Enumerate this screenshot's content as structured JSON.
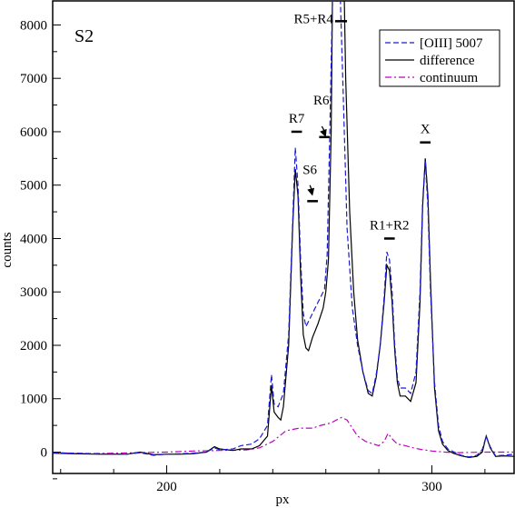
{
  "chart_data": {
    "type": "line",
    "title": "",
    "panel_label": "S2",
    "xlabel": "px",
    "ylabel": "counts",
    "xlim": [
      157,
      331
    ],
    "ylim": [
      -400,
      8450
    ],
    "x_ticks": [
      200,
      300
    ],
    "y_ticks": [
      0,
      1000,
      2000,
      3000,
      4000,
      5000,
      6000,
      7000,
      8000
    ],
    "legend_position": "top-right",
    "series": [
      {
        "name": "[OIII] 5007",
        "color": "#1a1ad6",
        "dash": "6,3",
        "points": [
          [
            157,
            -10
          ],
          [
            165,
            -20
          ],
          [
            175,
            -30
          ],
          [
            185,
            -40
          ],
          [
            190,
            -10
          ],
          [
            195,
            -60
          ],
          [
            200,
            -40
          ],
          [
            205,
            -30
          ],
          [
            210,
            -20
          ],
          [
            215,
            0
          ],
          [
            218,
            80
          ],
          [
            220,
            40
          ],
          [
            225,
            60
          ],
          [
            228,
            120
          ],
          [
            232,
            150
          ],
          [
            235,
            250
          ],
          [
            238,
            500
          ],
          [
            239.5,
            1450
          ],
          [
            240.5,
            900
          ],
          [
            242,
            850
          ],
          [
            244,
            1100
          ],
          [
            246,
            2200
          ],
          [
            247.5,
            4300
          ],
          [
            248.5,
            5700
          ],
          [
            249.5,
            5000
          ],
          [
            250.5,
            3600
          ],
          [
            251.5,
            2600
          ],
          [
            252.5,
            2350
          ],
          [
            254,
            2500
          ],
          [
            256,
            2700
          ],
          [
            258,
            2900
          ],
          [
            259.5,
            3050
          ],
          [
            260.5,
            3700
          ],
          [
            261.5,
            6000
          ],
          [
            262.5,
            8450
          ],
          [
            265.5,
            8450
          ],
          [
            266.5,
            6800
          ],
          [
            268,
            4200
          ],
          [
            270,
            2700
          ],
          [
            272,
            2000
          ],
          [
            274,
            1500
          ],
          [
            276,
            1150
          ],
          [
            277.5,
            1100
          ],
          [
            279,
            1450
          ],
          [
            280.5,
            2000
          ],
          [
            282,
            2900
          ],
          [
            283,
            3750
          ],
          [
            284,
            3600
          ],
          [
            285,
            3000
          ],
          [
            286,
            2000
          ],
          [
            287,
            1400
          ],
          [
            288,
            1200
          ],
          [
            290,
            1200
          ],
          [
            292,
            1100
          ],
          [
            294,
            1500
          ],
          [
            295.5,
            3000
          ],
          [
            296.5,
            4700
          ],
          [
            297.5,
            5450
          ],
          [
            298.5,
            4600
          ],
          [
            299.5,
            3000
          ],
          [
            301,
            1300
          ],
          [
            302.5,
            500
          ],
          [
            304,
            200
          ],
          [
            306,
            60
          ],
          [
            308,
            10
          ],
          [
            311,
            -60
          ],
          [
            314,
            -90
          ],
          [
            317,
            -60
          ],
          [
            319,
            50
          ],
          [
            320.5,
            300
          ],
          [
            322,
            100
          ],
          [
            324,
            -70
          ],
          [
            327,
            -60
          ],
          [
            331,
            -40
          ]
        ]
      },
      {
        "name": "difference",
        "color": "#000000",
        "dash": "",
        "points": [
          [
            157,
            -20
          ],
          [
            165,
            -30
          ],
          [
            175,
            -40
          ],
          [
            185,
            -40
          ],
          [
            190,
            0
          ],
          [
            195,
            -50
          ],
          [
            200,
            -40
          ],
          [
            205,
            -40
          ],
          [
            210,
            -30
          ],
          [
            215,
            0
          ],
          [
            218,
            100
          ],
          [
            220,
            60
          ],
          [
            225,
            30
          ],
          [
            228,
            60
          ],
          [
            232,
            60
          ],
          [
            235,
            120
          ],
          [
            238,
            300
          ],
          [
            239.5,
            1250
          ],
          [
            240.5,
            750
          ],
          [
            242,
            650
          ],
          [
            243,
            600
          ],
          [
            244,
            850
          ],
          [
            246,
            2000
          ],
          [
            247.5,
            4200
          ],
          [
            248.5,
            5300
          ],
          [
            249.5,
            4800
          ],
          [
            250.5,
            3300
          ],
          [
            251.5,
            2200
          ],
          [
            252.5,
            1950
          ],
          [
            253.5,
            1900
          ],
          [
            255,
            2150
          ],
          [
            257,
            2400
          ],
          [
            259,
            2700
          ],
          [
            260,
            3000
          ],
          [
            261,
            3600
          ],
          [
            262,
            6000
          ],
          [
            262.5,
            8450
          ],
          [
            267,
            8450
          ],
          [
            267.5,
            7000
          ],
          [
            269,
            4500
          ],
          [
            270.5,
            3000
          ],
          [
            272,
            2100
          ],
          [
            274,
            1500
          ],
          [
            276,
            1100
          ],
          [
            277.5,
            1050
          ],
          [
            279,
            1400
          ],
          [
            280.5,
            2000
          ],
          [
            282,
            2800
          ],
          [
            283,
            3500
          ],
          [
            284,
            3400
          ],
          [
            285,
            2800
          ],
          [
            286,
            1900
          ],
          [
            287,
            1300
          ],
          [
            288,
            1050
          ],
          [
            290,
            1050
          ],
          [
            292,
            950
          ],
          [
            294,
            1300
          ],
          [
            295.5,
            2800
          ],
          [
            296.5,
            4600
          ],
          [
            297.5,
            5500
          ],
          [
            298.5,
            4800
          ],
          [
            299.5,
            3200
          ],
          [
            301,
            1200
          ],
          [
            302.5,
            400
          ],
          [
            304,
            150
          ],
          [
            306,
            30
          ],
          [
            308,
            -20
          ],
          [
            311,
            -70
          ],
          [
            314,
            -100
          ],
          [
            317,
            -80
          ],
          [
            319,
            0
          ],
          [
            320.5,
            300
          ],
          [
            322,
            80
          ],
          [
            324,
            -80
          ],
          [
            327,
            -70
          ],
          [
            331,
            -80
          ]
        ]
      },
      {
        "name": "continuum",
        "color": "#c000c0",
        "dash": "7,3,2,3",
        "points": [
          [
            157,
            -10
          ],
          [
            170,
            -30
          ],
          [
            180,
            -20
          ],
          [
            190,
            -10
          ],
          [
            200,
            0
          ],
          [
            210,
            20
          ],
          [
            220,
            30
          ],
          [
            230,
            40
          ],
          [
            235,
            80
          ],
          [
            240,
            200
          ],
          [
            245,
            400
          ],
          [
            250,
            450
          ],
          [
            255,
            450
          ],
          [
            258,
            500
          ],
          [
            260,
            520
          ],
          [
            262,
            550
          ],
          [
            264,
            600
          ],
          [
            266,
            650
          ],
          [
            268,
            600
          ],
          [
            270,
            450
          ],
          [
            272,
            300
          ],
          [
            275,
            200
          ],
          [
            278,
            150
          ],
          [
            280,
            120
          ],
          [
            282,
            200
          ],
          [
            283.5,
            350
          ],
          [
            285,
            250
          ],
          [
            287,
            150
          ],
          [
            290,
            120
          ],
          [
            293,
            80
          ],
          [
            296,
            50
          ],
          [
            300,
            20
          ],
          [
            305,
            0
          ],
          [
            310,
            -10
          ],
          [
            320,
            0
          ],
          [
            331,
            0
          ]
        ]
      }
    ],
    "annotations": [
      {
        "text": "R5+R4",
        "x": 266,
        "bar": [
          263.5,
          268
        ],
        "bar_y": 8070
      },
      {
        "text": "R7",
        "x": 249,
        "bar": [
          247,
          251
        ],
        "bar_y": 6000
      },
      {
        "text": "R6",
        "x": 259,
        "bar": [
          257.5,
          261.5
        ],
        "bar_y": 5900
      },
      {
        "text": "S6",
        "x": 255,
        "bar": [
          253,
          257
        ],
        "bar_y": 4700
      },
      {
        "text": "R1+R2",
        "x": 284,
        "bar": [
          282,
          286
        ],
        "bar_y": 4000
      },
      {
        "text": "X",
        "x": 297.5,
        "bar": [
          295.5,
          299.5
        ],
        "bar_y": 5800
      }
    ],
    "arrows": [
      {
        "from": [
          258.5,
          6100
        ],
        "to": [
          260,
          5900
        ]
      },
      {
        "from": [
          254,
          5000
        ],
        "to": [
          255,
          4800
        ]
      }
    ]
  }
}
